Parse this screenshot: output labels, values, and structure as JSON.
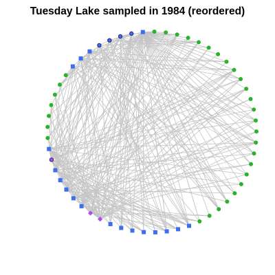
{
  "title": "Tuesday Lake sampled in 1984 (reordered)",
  "colors": {
    "background": "#ffffff",
    "edge": "#c4c4c4",
    "node_blue": "#3d6df2",
    "node_green": "#27b32c",
    "node_purple": "#b24ce6",
    "node_outline": "#1a1a6e"
  },
  "network": {
    "layout": "circle",
    "nodes": [
      {
        "id": 1,
        "type": "square",
        "color": "blue"
      },
      {
        "id": 2,
        "type": "circle",
        "color": "blue"
      },
      {
        "id": 3,
        "type": "circle",
        "color": "blue"
      },
      {
        "id": 4,
        "type": "circle",
        "color": "blue"
      },
      {
        "id": 5,
        "type": "circle",
        "color": "blue"
      },
      {
        "id": 6,
        "type": "square",
        "color": "blue"
      },
      {
        "id": 7,
        "type": "square",
        "color": "blue"
      },
      {
        "id": 8,
        "type": "square",
        "color": "blue"
      },
      {
        "id": 9,
        "type": "dot",
        "color": "green"
      },
      {
        "id": 10,
        "type": "dot",
        "color": "green"
      },
      {
        "id": 11,
        "type": "dot",
        "color": "green"
      },
      {
        "id": 12,
        "type": "dot",
        "color": "green"
      },
      {
        "id": 13,
        "type": "dot",
        "color": "green"
      },
      {
        "id": 14,
        "type": "dot",
        "color": "green"
      },
      {
        "id": 15,
        "type": "dot",
        "color": "green"
      },
      {
        "id": 16,
        "type": "square",
        "color": "blue"
      },
      {
        "id": 17,
        "type": "circle",
        "color": "purple"
      },
      {
        "id": 18,
        "type": "square",
        "color": "blue"
      },
      {
        "id": 19,
        "type": "square",
        "color": "blue"
      },
      {
        "id": 20,
        "type": "square",
        "color": "blue"
      },
      {
        "id": 21,
        "type": "square",
        "color": "blue"
      },
      {
        "id": 22,
        "type": "square",
        "color": "blue"
      },
      {
        "id": 23,
        "type": "diamond",
        "color": "purple"
      },
      {
        "id": 24,
        "type": "diamond",
        "color": "purple"
      },
      {
        "id": 25,
        "type": "square",
        "color": "blue"
      },
      {
        "id": 26,
        "type": "square",
        "color": "blue"
      },
      {
        "id": 27,
        "type": "square",
        "color": "blue"
      },
      {
        "id": 28,
        "type": "square",
        "color": "blue"
      },
      {
        "id": 29,
        "type": "square",
        "color": "blue"
      },
      {
        "id": 30,
        "type": "square",
        "color": "blue"
      },
      {
        "id": 31,
        "type": "square",
        "color": "blue"
      },
      {
        "id": 32,
        "type": "square",
        "color": "blue"
      },
      {
        "id": 33,
        "type": "dot",
        "color": "green"
      },
      {
        "id": 34,
        "type": "dot",
        "color": "green"
      },
      {
        "id": 35,
        "type": "dot",
        "color": "green"
      },
      {
        "id": 36,
        "type": "dot",
        "color": "green"
      },
      {
        "id": 37,
        "type": "dot",
        "color": "green"
      },
      {
        "id": 38,
        "type": "dot",
        "color": "green"
      },
      {
        "id": 39,
        "type": "dot",
        "color": "green"
      },
      {
        "id": 40,
        "type": "dot",
        "color": "green"
      },
      {
        "id": 41,
        "type": "dot",
        "color": "green"
      },
      {
        "id": 42,
        "type": "dot",
        "color": "green"
      },
      {
        "id": 43,
        "type": "dot",
        "color": "green"
      },
      {
        "id": 44,
        "type": "dot",
        "color": "green"
      },
      {
        "id": 45,
        "type": "dot",
        "color": "green"
      },
      {
        "id": 46,
        "type": "dot",
        "color": "green"
      },
      {
        "id": 47,
        "type": "dot",
        "color": "green"
      },
      {
        "id": 48,
        "type": "dot",
        "color": "green"
      },
      {
        "id": 49,
        "type": "dot",
        "color": "green"
      },
      {
        "id": 50,
        "type": "dot",
        "color": "green"
      },
      {
        "id": 51,
        "type": "dot",
        "color": "green"
      },
      {
        "id": 52,
        "type": "dot",
        "color": "green"
      },
      {
        "id": 53,
        "type": "dot",
        "color": "green"
      },
      {
        "id": 54,
        "type": "dot",
        "color": "green"
      },
      {
        "id": 55,
        "type": "dot",
        "color": "green"
      },
      {
        "id": 56,
        "type": "dot",
        "color": "green"
      },
      {
        "id": 57,
        "type": "dot",
        "color": "green"
      }
    ],
    "hub_nodes": [
      1,
      2,
      3,
      4,
      5,
      6,
      7,
      8,
      16,
      17,
      18,
      19,
      20,
      21,
      22,
      23,
      24
    ],
    "edge_density": "dense"
  }
}
